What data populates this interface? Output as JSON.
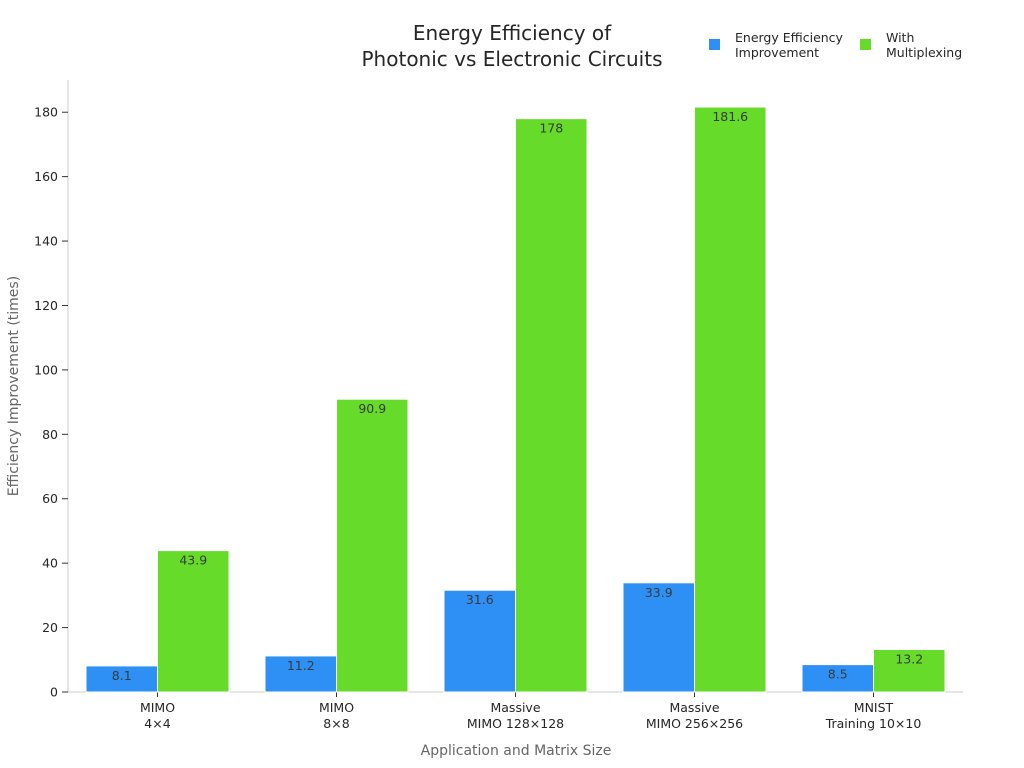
{
  "chart_data": {
    "type": "bar",
    "title": [
      "Energy Efficiency of",
      "Photonic vs Electronic Circuits"
    ],
    "xlabel": "Application and Matrix Size",
    "ylabel": "Efficiency Improvement (times)",
    "categories": [
      [
        "MIMO",
        "4×4"
      ],
      [
        "MIMO",
        "8×8"
      ],
      [
        "Massive",
        "MIMO 128×128"
      ],
      [
        "Massive",
        "MIMO 256×256"
      ],
      [
        "MNIST",
        "Training 10×10"
      ]
    ],
    "series": [
      {
        "name": [
          "Energy Efficiency",
          "Improvement"
        ],
        "color": "#2e90f5",
        "values": [
          8.1,
          11.2,
          31.6,
          33.9,
          8.5
        ]
      },
      {
        "name": [
          "With",
          "Multiplexing"
        ],
        "color": "#66db2a",
        "values": [
          43.9,
          90.9,
          178,
          181.6,
          13.2
        ]
      }
    ],
    "ylim": [
      0,
      190
    ],
    "yticks": [
      0,
      20,
      40,
      60,
      80,
      100,
      120,
      140,
      160,
      180
    ],
    "grid": false,
    "legend_position": "top-right"
  }
}
